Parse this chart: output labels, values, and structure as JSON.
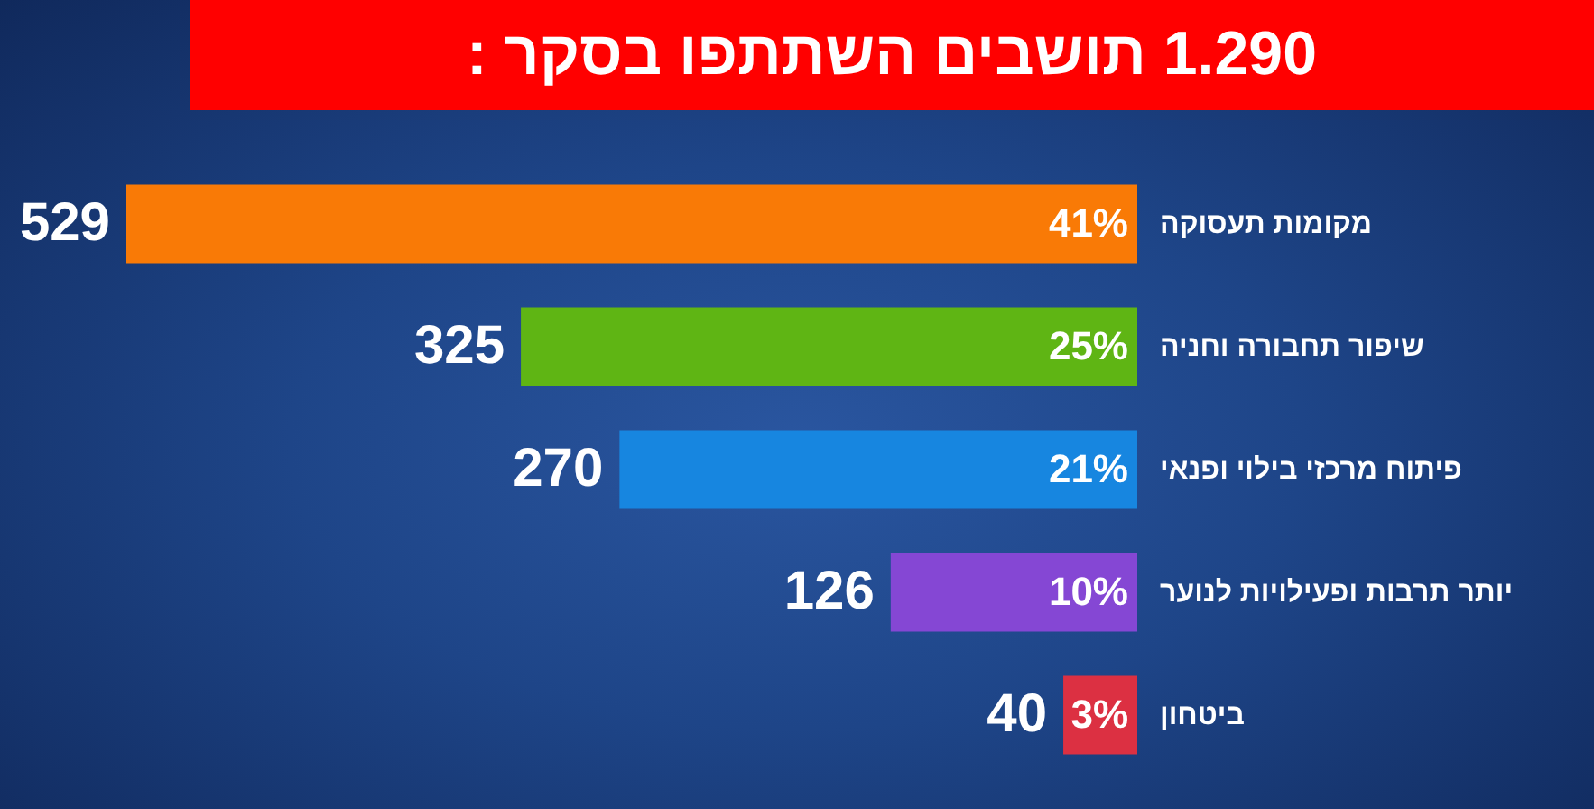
{
  "chart_data": {
    "type": "bar",
    "orientation": "horizontal",
    "title": "1.290 תושבים השתתפו בסקר :",
    "categories": [
      "מקומות תעסוקה",
      "שיפור תחבורה וחניה",
      "פיתוח מרכזי בילוי ופנאי",
      "יותר תרבות ופעילויות לנוער",
      "ביטחון"
    ],
    "values": [
      41,
      25,
      21,
      10,
      3
    ],
    "colors": [
      "#f97a06",
      "#5fb514",
      "#1786e0",
      "#8547d4",
      "#dc3042"
    ],
    "value_labels": [
      "41%",
      "25%",
      "21%",
      "10%",
      "3%"
    ],
    "annotations": [
      {
        "text": "529",
        "x": 41,
        "y": "מקומות תעסוקה"
      },
      {
        "text": "325",
        "x": 25,
        "y": "שיפור תחבורה וחניה"
      },
      {
        "text": "270",
        "x": 21,
        "y": "פיתוח מרכזי בילוי ופנאי"
      },
      {
        "text": "126",
        "x": 10,
        "y": "יותר תרבות ופעילויות לנוער"
      },
      {
        "text": "40",
        "x": 3,
        "y": "ביטחון"
      }
    ],
    "tick_labels": "y"
  }
}
